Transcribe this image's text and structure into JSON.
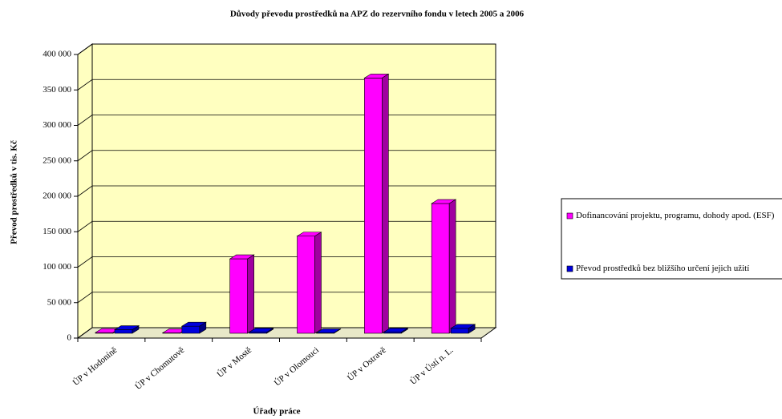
{
  "chart_data": {
    "type": "bar3d",
    "title": "Důvody převodu prostředků na APZ do rezervního fondu v letech 2005 a 2006",
    "y_label": "Převod prostředků v tis. Kč",
    "x_label": "Úřady práce",
    "categories": [
      "ÚP v Hodoníně",
      "ÚP v Chomutově",
      "ÚP v Mostě",
      "ÚP v Olomouci",
      "ÚP v Ostravě",
      "ÚP v Ústí n. L."
    ],
    "series": [
      {
        "name": "Dofinancování projektu, programu, dohody apod. (ESF)",
        "color": "#ff00ff",
        "side": "#a000a0",
        "values": [
          1000,
          500,
          105000,
          137000,
          360000,
          183000
        ]
      },
      {
        "name": "Převod prostředků bez bližšího určení jejich užití",
        "color": "#0000dd",
        "side": "#000080",
        "values": [
          5000,
          10000,
          1500,
          500,
          1500,
          7000
        ]
      }
    ],
    "ylim": [
      0,
      400000
    ],
    "yticks": [
      0,
      {
        "value": 50000,
        "label": "50 000"
      },
      {
        "value": 100000,
        "label": "100 000"
      },
      {
        "value": 150000,
        "label": "150 000"
      },
      {
        "value": 200000,
        "label": "200 000"
      },
      {
        "value": 250000,
        "label": "250 000"
      },
      {
        "value": 300000,
        "label": "300 000"
      },
      {
        "value": 350000,
        "label": "350 000"
      },
      {
        "value": 400000,
        "label": "400 000"
      }
    ],
    "grid": true,
    "legend": "right",
    "wall_color": "#ffffc0"
  }
}
